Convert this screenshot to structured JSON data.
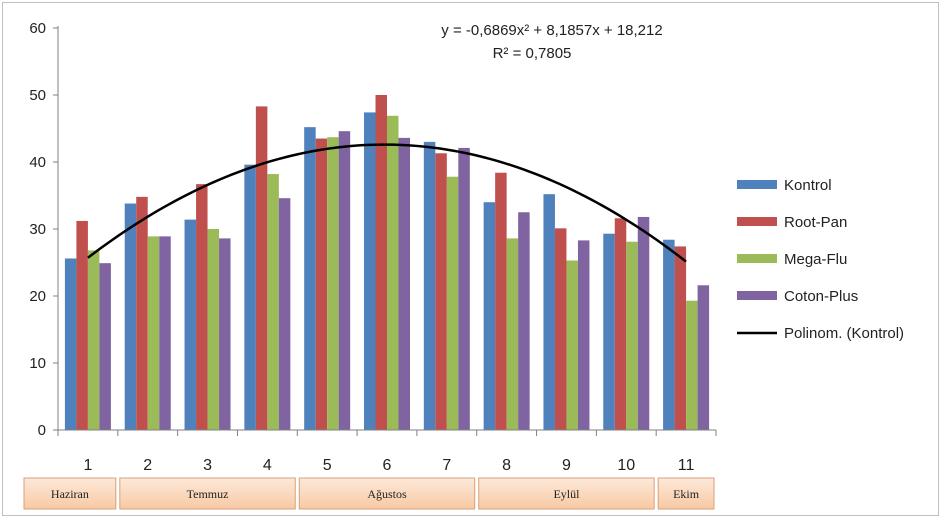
{
  "chart_data": {
    "type": "bar",
    "categories": [
      "1",
      "2",
      "3",
      "4",
      "5",
      "6",
      "7",
      "8",
      "9",
      "10",
      "11"
    ],
    "series": [
      {
        "name": "Kontrol",
        "color": "#4f81bd",
        "values": [
          25.6,
          33.8,
          31.4,
          39.6,
          45.2,
          47.4,
          43.0,
          34.0,
          35.2,
          29.3,
          28.4
        ]
      },
      {
        "name": "Root-Pan",
        "color": "#c0504d",
        "values": [
          31.2,
          34.8,
          36.7,
          48.3,
          43.5,
          50.0,
          41.3,
          38.4,
          30.1,
          31.6,
          27.4
        ]
      },
      {
        "name": "Mega-Flu",
        "color": "#9bbb59",
        "values": [
          26.8,
          28.9,
          30.0,
          38.2,
          43.7,
          46.9,
          37.8,
          28.6,
          25.3,
          28.1,
          19.3
        ]
      },
      {
        "name": "Coton-Plus",
        "color": "#8064a2",
        "values": [
          24.9,
          28.9,
          28.6,
          34.6,
          44.6,
          43.6,
          42.1,
          32.5,
          28.3,
          31.8,
          21.6
        ]
      }
    ],
    "trendline": {
      "name": "Polinom. (Kontrol)",
      "color": "#000000",
      "coefficients": {
        "a": -0.6869,
        "b": 8.1857,
        "c": 18.212
      },
      "equation": "y = -0,6869x² + 8,1857x + 18,212",
      "r2": "R² = 0,7805"
    },
    "ylim": [
      0,
      60
    ],
    "yticks": [
      "0",
      "10",
      "20",
      "30",
      "40",
      "50",
      "60"
    ],
    "grid": false,
    "legend_position": "right",
    "month_groups": [
      {
        "label": "Haziran",
        "from": 1,
        "to": 1
      },
      {
        "label": "Temmuz",
        "from": 2,
        "to": 4
      },
      {
        "label": "Ağustos",
        "from": 5,
        "to": 7
      },
      {
        "label": "Eylül",
        "from": 8,
        "to": 10
      },
      {
        "label": "Ekim",
        "from": 11,
        "to": 11
      }
    ]
  }
}
